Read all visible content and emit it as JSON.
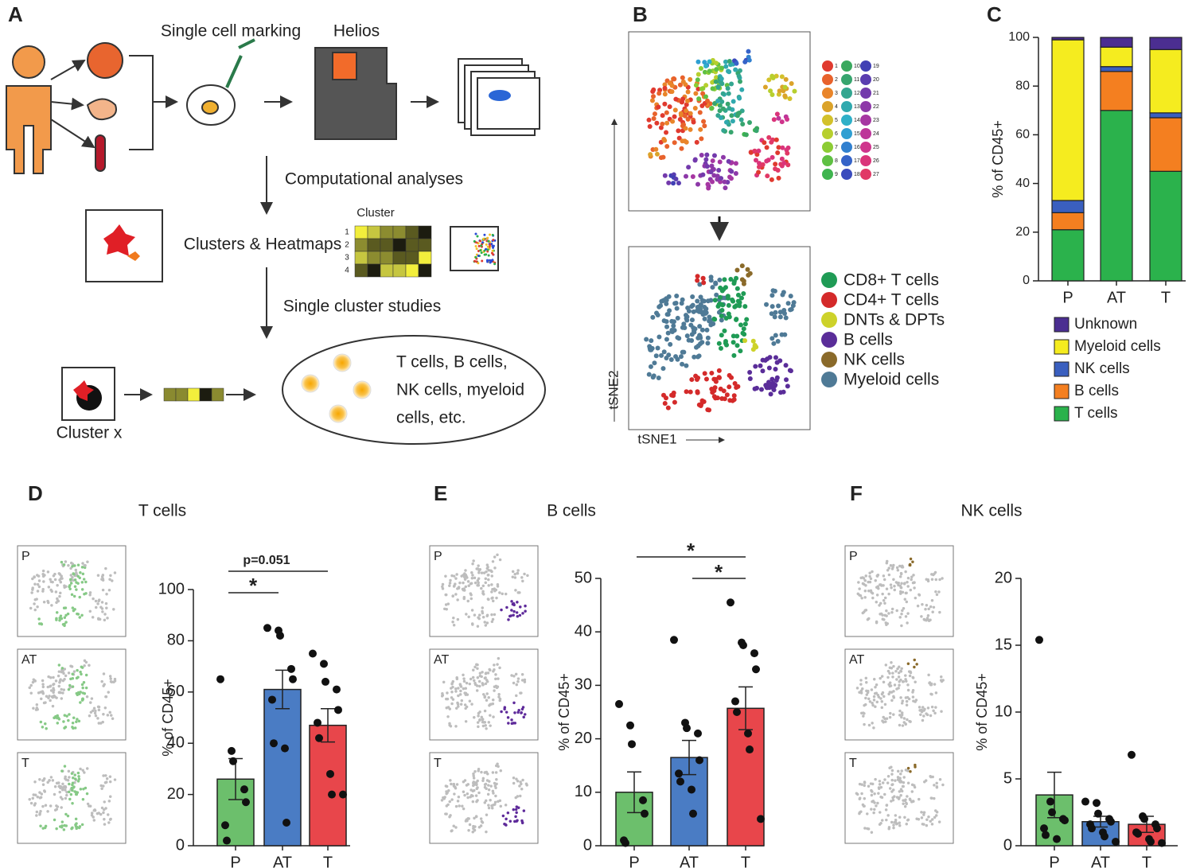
{
  "panels": {
    "labels": [
      "A",
      "B",
      "C",
      "D",
      "E",
      "F"
    ]
  },
  "diagram": {
    "single_cell_marking": "Single cell marking",
    "helios": "Helios",
    "computational": "Computational analyses",
    "cluster": "Cluster",
    "heatmap_rows": [
      "1",
      "2",
      "3",
      "4"
    ],
    "clusters_heatmaps": "Clusters & Heatmaps",
    "single_cluster": "Single cluster studies",
    "result_lines": [
      "T cells, B cells,",
      "NK cells, myeloid",
      "cells, etc."
    ],
    "cluster_x": "Cluster x"
  },
  "tsne": {
    "xlabel": "tSNE1",
    "ylabel": "tSNE2",
    "clusters": {
      "labels": [
        "1",
        "2",
        "3",
        "4",
        "5",
        "6",
        "7",
        "8",
        "9",
        "10",
        "11",
        "12",
        "13",
        "14",
        "15",
        "16",
        "17",
        "18",
        "19",
        "20",
        "21",
        "22",
        "23",
        "24",
        "25",
        "26",
        "27"
      ],
      "colors": [
        "#e03a2f",
        "#e8622c",
        "#e9852a",
        "#dba32a",
        "#d3c12b",
        "#b7cf2e",
        "#8ccc34",
        "#5fc043",
        "#3fb44f",
        "#3aa85e",
        "#37a56e",
        "#33a690",
        "#30a9ae",
        "#2fb0c8",
        "#2f9fd2",
        "#3180cf",
        "#3563c8",
        "#3a4bbd",
        "#4140b4",
        "#5a3db0",
        "#733aac",
        "#8d38a8",
        "#a636a2",
        "#bd3599",
        "#cf358c",
        "#da347a",
        "#e13866"
      ]
    },
    "cell_types": {
      "names": [
        "CD8+ T cells",
        "CD4+ T cells",
        "DNTs & DPTs",
        "B cells",
        "NK cells",
        "Myeloid cells"
      ],
      "colors": [
        "#1f9b55",
        "#d42a2a",
        "#cdd22a",
        "#5a2d99",
        "#8a6a2a",
        "#4f7a96"
      ]
    }
  },
  "chart_data": [
    {
      "type": "stacked_bar",
      "categories": [
        "P",
        "AT",
        "T"
      ],
      "ylabel": "% of CD45+",
      "ylim": [
        0,
        100
      ],
      "yticks": [
        0,
        20,
        40,
        60,
        80,
        100
      ],
      "series": [
        {
          "name": "T cells",
          "color": "#2bb24c",
          "values": [
            21,
            70,
            45
          ]
        },
        {
          "name": "B cells",
          "color": "#f47f20",
          "values": [
            7,
            16,
            22
          ]
        },
        {
          "name": "NK cells",
          "color": "#3a5fbf",
          "values": [
            5,
            2,
            2
          ]
        },
        {
          "name": "Myeloid cells",
          "color": "#f5ec1f",
          "values": [
            66,
            8,
            26
          ]
        },
        {
          "name": "Unknown",
          "color": "#4b2e91",
          "values": [
            1,
            4,
            5
          ]
        }
      ]
    },
    {
      "type": "bar_dot",
      "title": "T cells",
      "categories": [
        "P",
        "AT",
        "T"
      ],
      "colors": [
        "#6cbf6c",
        "#4a7cc4",
        "#e8464b"
      ],
      "thumbnail_color": "#86c986",
      "values": [
        26,
        61,
        47
      ],
      "errors": [
        8,
        7.5,
        6.5
      ],
      "points": [
        [
          65,
          37,
          33,
          22,
          17,
          8,
          2
        ],
        [
          85,
          84,
          82,
          69,
          65,
          57,
          40,
          38,
          9
        ],
        [
          75,
          71,
          64,
          61,
          53,
          48,
          42,
          28,
          20,
          20
        ]
      ],
      "ylabel": "% of CD45+",
      "ylim": [
        0,
        100
      ],
      "yticks": [
        0,
        20,
        40,
        60,
        80,
        100
      ],
      "annotations": [
        "p=0.051",
        "*"
      ],
      "thumbnails": [
        "P",
        "AT",
        "T"
      ]
    },
    {
      "type": "bar_dot",
      "title": "B cells",
      "categories": [
        "P",
        "AT",
        "T"
      ],
      "colors": [
        "#6cbf6c",
        "#4a7cc4",
        "#e8464b"
      ],
      "thumbnail_color": "#5e2a9a",
      "values": [
        10,
        16.5,
        25.7
      ],
      "errors": [
        3.8,
        3.2,
        4
      ],
      "points": [
        [
          26.5,
          22.5,
          19,
          8.5,
          6,
          1,
          0.5
        ],
        [
          38.5,
          23,
          22,
          21,
          16,
          13.5,
          12,
          10.5,
          6
        ],
        [
          45.5,
          38,
          37.5,
          36,
          33,
          27,
          25,
          21,
          18,
          5
        ]
      ],
      "ylabel": "% of CD45+",
      "ylim": [
        0,
        50
      ],
      "yticks": [
        0,
        10,
        20,
        30,
        40,
        50
      ],
      "annotations": [
        "*",
        "*"
      ],
      "thumbnails": [
        "P",
        "AT",
        "T"
      ]
    },
    {
      "type": "bar_dot",
      "title": "NK cells",
      "categories": [
        "P",
        "AT",
        "T"
      ],
      "colors": [
        "#6cbf6c",
        "#4a7cc4",
        "#e8464b"
      ],
      "thumbnail_color": "#8a6a2a",
      "values": [
        3.8,
        1.8,
        1.6
      ],
      "errors": [
        1.7,
        0.4,
        0.6
      ],
      "points": [
        [
          15.4,
          3.3,
          2.5,
          2,
          1.9,
          1.3,
          0.8,
          0.5
        ],
        [
          3.3,
          3.2,
          2.4,
          2,
          1.8,
          1.6,
          1.3,
          1,
          0.7,
          0.3
        ],
        [
          6.8,
          2.2,
          2,
          1.6,
          1.3,
          1,
          0.9,
          0.5,
          0.3,
          0.2
        ]
      ],
      "ylabel": "% of CD45+",
      "ylim": [
        0,
        20
      ],
      "yticks": [
        0,
        5,
        10,
        15,
        20
      ],
      "annotations": [],
      "thumbnails": [
        "P",
        "AT",
        "T"
      ]
    }
  ]
}
